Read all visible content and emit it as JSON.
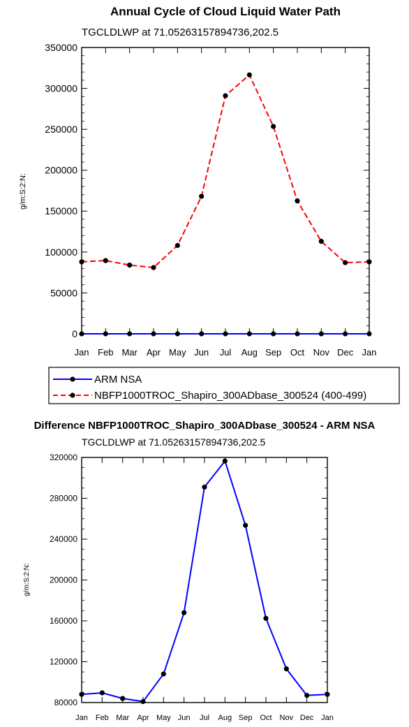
{
  "chart_data": [
    {
      "type": "line",
      "title": "Annual Cycle of Cloud Liquid Water Path",
      "subtitle": "TGCLDLWP at 71.05263157894736,202.5",
      "ylabel": "g/m:S:2:N:",
      "xlabel": "",
      "categories": [
        "Jan",
        "Feb",
        "Mar",
        "Apr",
        "May",
        "Jun",
        "Jul",
        "Aug",
        "Sep",
        "Oct",
        "Nov",
        "Dec",
        "Jan"
      ],
      "ylim": [
        0,
        350000
      ],
      "yticks": [
        "0",
        "50000",
        "100000",
        "150000",
        "200000",
        "250000",
        "300000",
        "350000"
      ],
      "ytick_values": [
        0,
        50000,
        100000,
        150000,
        200000,
        250000,
        300000,
        350000
      ],
      "legend_placement": "below",
      "series": [
        {
          "name": "ARM NSA",
          "color": "#0000ff",
          "style": "solid",
          "values": [
            0,
            0,
            0,
            0,
            0,
            0,
            0,
            0,
            0,
            0,
            0,
            0,
            0
          ]
        },
        {
          "name": "NBFP1000TROC_Shapiro_300ADbase_300524 (400-499)",
          "color": "#ff0000",
          "style": "dashed",
          "values": [
            88000,
            89500,
            84000,
            81000,
            108000,
            168000,
            291000,
            316500,
            253500,
            162500,
            113000,
            87000,
            88000
          ]
        }
      ]
    },
    {
      "type": "line",
      "title": "Difference NBFP1000TROC_Shapiro_300ADbase_300524 - ARM NSA",
      "subtitle": "TGCLDLWP at 71.05263157894736,202.5",
      "ylabel": "g/m:S:2:N:",
      "xlabel": "",
      "categories": [
        "Jan",
        "Feb",
        "Mar",
        "Apr",
        "May",
        "Jun",
        "Jul",
        "Aug",
        "Sep",
        "Oct",
        "Nov",
        "Dec",
        "Jan"
      ],
      "ylim": [
        80000,
        320000
      ],
      "yticks": [
        "80000",
        "120000",
        "160000",
        "200000",
        "240000",
        "280000",
        "320000"
      ],
      "ytick_values": [
        80000,
        120000,
        160000,
        200000,
        240000,
        280000,
        320000
      ],
      "series": [
        {
          "color": "#0000ff",
          "style": "solid",
          "values": [
            88000,
            89500,
            84000,
            81000,
            108000,
            168000,
            291000,
            316500,
            253500,
            162500,
            113000,
            87000,
            88000
          ]
        }
      ]
    }
  ]
}
